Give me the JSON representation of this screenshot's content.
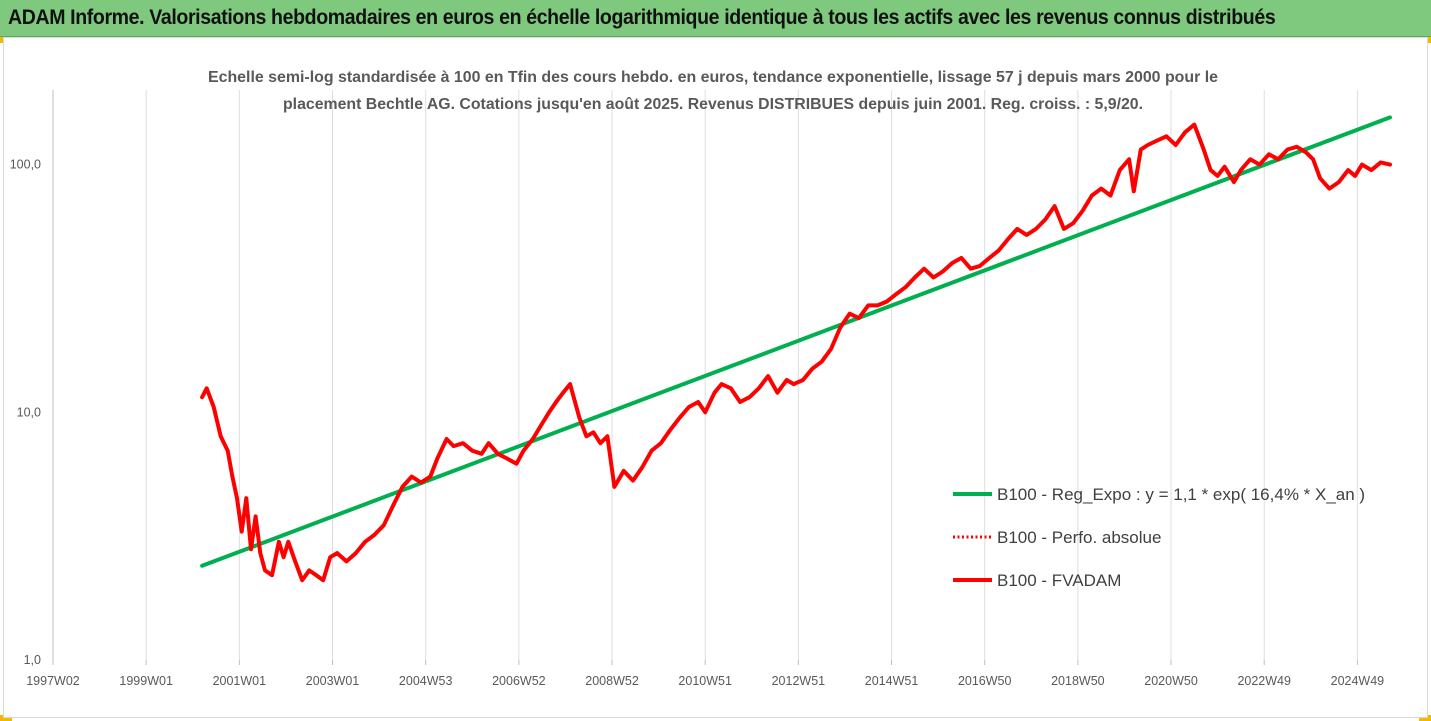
{
  "header": {
    "title": "ADAM Informe. Valorisations hebdomadaires en euros en échelle logarithmique identique à tous les actifs avec les revenus connus distribués"
  },
  "colors": {
    "header_bg": "#7fc97f",
    "corner_accent": "#f5b800",
    "regression": "#00b050",
    "fvadam": "#ff0000",
    "perfo": "#ff0000"
  },
  "chart_data": {
    "type": "line",
    "title": "",
    "subtitle_lines": [
      "Echelle semi-log standardisée à 100 en Tfin des cours hebdo. en euros, tendance exponentielle, lissage 57 j depuis mars 2000 pour le",
      "placement Bechtle AG. Cotations jusqu'en août 2025. Revenus DISTRIBUES depuis juin 2001. Reg. croiss. : 5,9/20."
    ],
    "xlabel": "",
    "ylabel": "",
    "y_scale": "log",
    "ylim": [
      1,
      200
    ],
    "xlim": [
      1997.0,
      2025.7
    ],
    "grid": "vertical",
    "y_ticks": [
      {
        "value": 1,
        "label": "1,0"
      },
      {
        "value": 10,
        "label": "10,0"
      },
      {
        "value": 100,
        "label": "100,0"
      }
    ],
    "x_ticks": [
      {
        "value": 1997.0,
        "label": "1997W02"
      },
      {
        "value": 1999.0,
        "label": "1999W01"
      },
      {
        "value": 2001.0,
        "label": "2001W01"
      },
      {
        "value": 2003.0,
        "label": "2003W01"
      },
      {
        "value": 2005.0,
        "label": "2004W53"
      },
      {
        "value": 2007.0,
        "label": "2006W52"
      },
      {
        "value": 2009.0,
        "label": "2008W52"
      },
      {
        "value": 2011.0,
        "label": "2010W51"
      },
      {
        "value": 2013.0,
        "label": "2012W51"
      },
      {
        "value": 2015.0,
        "label": "2014W51"
      },
      {
        "value": 2017.0,
        "label": "2016W50"
      },
      {
        "value": 2019.0,
        "label": "2018W50"
      },
      {
        "value": 2021.0,
        "label": "2020W50"
      },
      {
        "value": 2023.0,
        "label": "2022W49"
      },
      {
        "value": 2025.0,
        "label": "2024W49"
      }
    ],
    "legend_position": "right-middle",
    "series": [
      {
        "name": "B100 - Reg_Expo : y = 1,1 * exp( 16,4% *  X_an )",
        "style": "solid-thick",
        "color": "#00b050",
        "x": [
          2000.2,
          2025.7
        ],
        "y": [
          2.4,
          155
        ]
      },
      {
        "name": "B100 - Perfo. absolue",
        "style": "dotted",
        "color": "#ff0000",
        "x": [],
        "y": []
      },
      {
        "name": "B100 - FVADAM",
        "style": "solid-thick",
        "color": "#ff0000",
        "x": [
          2000.2,
          2000.3,
          2000.45,
          2000.6,
          2000.75,
          2000.85,
          2000.95,
          2001.05,
          2001.15,
          2001.25,
          2001.35,
          2001.45,
          2001.55,
          2001.7,
          2001.85,
          2001.95,
          2002.05,
          2002.2,
          2002.35,
          2002.5,
          2002.65,
          2002.8,
          2002.95,
          2003.1,
          2003.3,
          2003.5,
          2003.7,
          2003.9,
          2004.1,
          2004.3,
          2004.5,
          2004.7,
          2004.9,
          2005.1,
          2005.25,
          2005.45,
          2005.6,
          2005.8,
          2006.0,
          2006.2,
          2006.35,
          2006.55,
          2006.75,
          2006.95,
          2007.1,
          2007.3,
          2007.5,
          2007.65,
          2007.8,
          2007.95,
          2008.1,
          2008.3,
          2008.45,
          2008.6,
          2008.75,
          2008.9,
          2009.05,
          2009.25,
          2009.45,
          2009.65,
          2009.85,
          2010.05,
          2010.25,
          2010.45,
          2010.65,
          2010.85,
          2011.0,
          2011.2,
          2011.35,
          2011.55,
          2011.75,
          2011.95,
          2012.15,
          2012.35,
          2012.55,
          2012.75,
          2012.9,
          2013.1,
          2013.3,
          2013.5,
          2013.7,
          2013.9,
          2014.1,
          2014.3,
          2014.5,
          2014.7,
          2014.9,
          2015.1,
          2015.3,
          2015.5,
          2015.7,
          2015.9,
          2016.1,
          2016.3,
          2016.5,
          2016.7,
          2016.9,
          2017.1,
          2017.3,
          2017.5,
          2017.7,
          2017.9,
          2018.1,
          2018.3,
          2018.5,
          2018.7,
          2018.9,
          2019.1,
          2019.3,
          2019.5,
          2019.7,
          2019.9,
          2020.1,
          2020.2,
          2020.35,
          2020.5,
          2020.7,
          2020.9,
          2021.1,
          2021.3,
          2021.5,
          2021.7,
          2021.85,
          2022.0,
          2022.15,
          2022.35,
          2022.5,
          2022.7,
          2022.9,
          2023.1,
          2023.3,
          2023.5,
          2023.7,
          2023.9,
          2024.05,
          2024.2,
          2024.4,
          2024.6,
          2024.8,
          2024.95,
          2025.1,
          2025.3,
          2025.5,
          2025.7
        ],
        "y": [
          11.5,
          12.5,
          10.5,
          8.0,
          7.0,
          5.5,
          4.5,
          3.3,
          4.5,
          2.8,
          3.8,
          2.7,
          2.3,
          2.2,
          3.0,
          2.6,
          3.0,
          2.5,
          2.1,
          2.3,
          2.2,
          2.1,
          2.6,
          2.7,
          2.5,
          2.7,
          3.0,
          3.2,
          3.5,
          4.2,
          5.0,
          5.5,
          5.2,
          5.5,
          6.5,
          7.8,
          7.3,
          7.5,
          7.0,
          6.8,
          7.5,
          6.8,
          6.5,
          6.2,
          7.0,
          7.8,
          9.0,
          10.0,
          11.0,
          12.0,
          13.0,
          9.5,
          8.0,
          8.3,
          7.5,
          8.0,
          5.0,
          5.8,
          5.3,
          6.0,
          7.0,
          7.5,
          8.5,
          9.5,
          10.5,
          11.0,
          10.0,
          12.0,
          13.0,
          12.5,
          11.0,
          11.5,
          12.5,
          14.0,
          12.0,
          13.5,
          13.0,
          13.5,
          15.0,
          16.0,
          18.0,
          22.0,
          25.0,
          24.0,
          27.0,
          27.0,
          28.0,
          30.0,
          32.0,
          35.0,
          38.0,
          35.0,
          37.0,
          40.0,
          42.0,
          38.0,
          39.0,
          42.0,
          45.0,
          50.0,
          55.0,
          52.0,
          55.0,
          60.0,
          68.0,
          55.0,
          58.0,
          65.0,
          75.0,
          80.0,
          75.0,
          95.0,
          105.0,
          78.0,
          115.0,
          120.0,
          125.0,
          130.0,
          120.0,
          135.0,
          145.0,
          115.0,
          95.0,
          90.0,
          98.0,
          85.0,
          95.0,
          105.0,
          100.0,
          110.0,
          105.0,
          115.0,
          118.0,
          112.0,
          105.0,
          88.0,
          80.0,
          85.0,
          95.0,
          90.0,
          100.0,
          95.0,
          102.0,
          100.0
        ]
      }
    ]
  }
}
